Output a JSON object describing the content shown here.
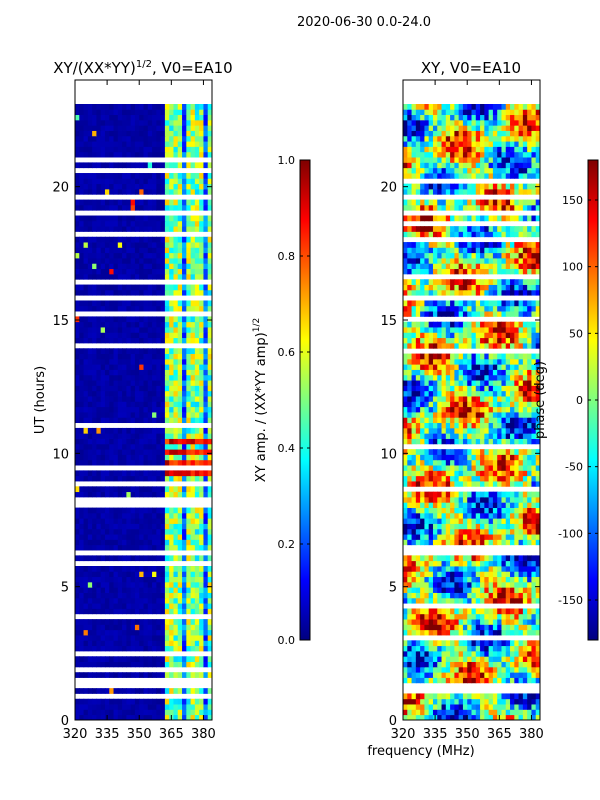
{
  "suptitle": "2020-06-30 0.0-24.0",
  "xlabel_shared": "frequency (MHz)",
  "colors": {
    "jet": [
      "#00007f",
      "#0000ff",
      "#007fff",
      "#00ffff",
      "#7fff7f",
      "#ffff00",
      "#ff7f00",
      "#ff0000",
      "#7f0000"
    ]
  },
  "chart_data": [
    {
      "type": "heatmap",
      "title": "XY/(XX*YY)",
      "title_exp": "1/2",
      "title_suffix": ", V0=EA10",
      "ylabel": "UT (hours)",
      "xlabel": "",
      "xlim": [
        320,
        384
      ],
      "ylim": [
        0,
        24
      ],
      "data_extent_hours": [
        0,
        23.1
      ],
      "xticks": [
        320,
        335,
        350,
        365,
        380
      ],
      "yticks": [
        0,
        5,
        10,
        15,
        20
      ],
      "rfi_band_mhz": [
        361,
        384
      ],
      "high_amplitude_hours": [
        8.7,
        10.4
      ],
      "colorbar": {
        "label": "XY amp. / (XX*YY amp)",
        "label_exp": "1/2",
        "range": [
          0.0,
          1.0
        ],
        "ticks": [
          "0.0",
          "0.2",
          "0.4",
          "0.6",
          "0.8",
          "1.0"
        ]
      }
    },
    {
      "type": "heatmap",
      "title": "XY, V0=EA10",
      "ylabel": "",
      "xlabel": "frequency (MHz)",
      "xlim": [
        320,
        384
      ],
      "ylim": [
        0,
        24
      ],
      "data_extent_hours": [
        0,
        23.1
      ],
      "xticks": [
        320,
        335,
        350,
        365,
        380
      ],
      "yticks": [
        0,
        5,
        10,
        15,
        20
      ],
      "colorbar": {
        "label": "phase (deg)",
        "range": [
          -180,
          180
        ],
        "ticks": [
          "-150",
          "-100",
          "-50",
          "0",
          "50",
          "100",
          "150"
        ]
      }
    }
  ]
}
